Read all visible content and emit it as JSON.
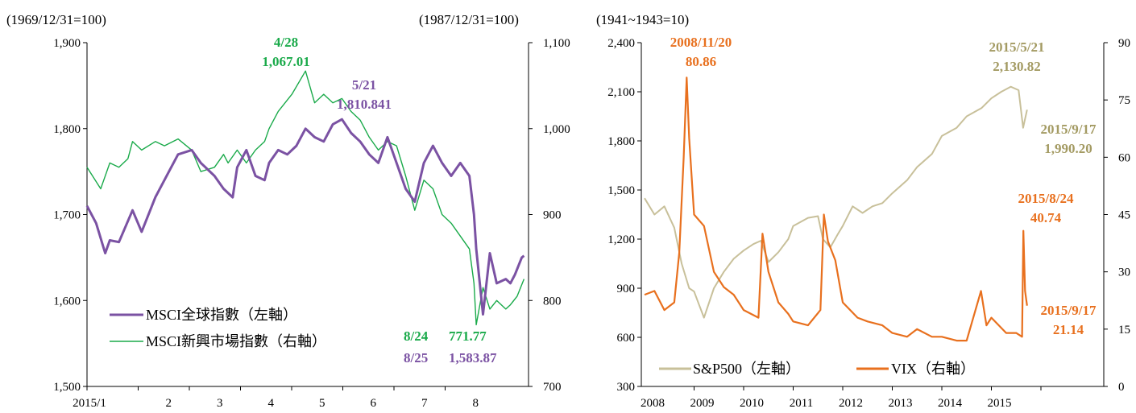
{
  "colors": {
    "msci_world": "#7B52A3",
    "msci_em": "#1AAA4A",
    "sp500": "#C8C09A",
    "vix": "#E8701E",
    "sp500_label": "#A39A62"
  },
  "chart_data": [
    {
      "type": "line",
      "left_unit": "(1969/12/31=100)",
      "right_unit": "(1987/12/31=100)",
      "x_tick_labels": [
        "2015/1",
        "2",
        "3",
        "4",
        "5",
        "6",
        "7",
        "8"
      ],
      "left_ylim": [
        1500,
        1900
      ],
      "left_yticks": [
        "1,500",
        "1,600",
        "1,700",
        "1,800",
        "1,900"
      ],
      "right_ylim": [
        700,
        1100
      ],
      "right_yticks": [
        "700",
        "800",
        "900",
        "1,000",
        "1,100"
      ],
      "series": [
        {
          "name": "MSCI全球指數（左軸）",
          "axis": "left",
          "x": [
            0,
            0.2,
            0.4,
            0.5,
            0.7,
            1.0,
            1.2,
            1.5,
            1.8,
            2.0,
            2.3,
            2.5,
            2.8,
            3.0,
            3.2,
            3.3,
            3.5,
            3.7,
            3.9,
            4.0,
            4.2,
            4.4,
            4.6,
            4.8,
            5.0,
            5.2,
            5.4,
            5.6,
            5.8,
            6.0,
            6.2,
            6.4,
            6.6,
            6.8,
            7.0,
            7.2,
            7.4,
            7.6,
            7.8,
            8.0,
            8.2,
            8.4,
            8.5,
            8.55,
            8.7,
            8.85,
            9.0,
            9.2,
            9.3,
            9.4,
            9.55,
            9.6
          ],
          "values": [
            1710,
            1690,
            1655,
            1670,
            1668,
            1705,
            1680,
            1720,
            1750,
            1770,
            1775,
            1760,
            1745,
            1730,
            1720,
            1755,
            1775,
            1745,
            1740,
            1760,
            1775,
            1770,
            1780,
            1800,
            1790,
            1785,
            1805,
            1810.841,
            1795,
            1785,
            1770,
            1760,
            1790,
            1760,
            1730,
            1715,
            1760,
            1780,
            1760,
            1745,
            1760,
            1745,
            1700,
            1660,
            1583.87,
            1655,
            1620,
            1625,
            1620,
            1630,
            1650,
            1652
          ]
        },
        {
          "name": "MSCI新興市場指數（右軸）",
          "axis": "right",
          "x": [
            0,
            0.3,
            0.5,
            0.7,
            0.9,
            1.0,
            1.2,
            1.5,
            1.7,
            2.0,
            2.3,
            2.5,
            2.8,
            3.0,
            3.1,
            3.3,
            3.5,
            3.7,
            3.9,
            4.0,
            4.2,
            4.5,
            4.8,
            5.0,
            5.2,
            5.4,
            5.6,
            5.8,
            6.0,
            6.2,
            6.4,
            6.6,
            6.8,
            7.0,
            7.2,
            7.4,
            7.6,
            7.8,
            8.0,
            8.2,
            8.4,
            8.5,
            8.55,
            8.7,
            8.85,
            9.0,
            9.2,
            9.3,
            9.45,
            9.6
          ],
          "values": [
            955,
            930,
            960,
            955,
            965,
            985,
            975,
            985,
            980,
            988,
            975,
            950,
            955,
            970,
            960,
            975,
            960,
            975,
            985,
            1000,
            1020,
            1040,
            1067.01,
            1030,
            1040,
            1030,
            1035,
            1020,
            1010,
            990,
            975,
            985,
            980,
            945,
            905,
            940,
            930,
            900,
            890,
            875,
            860,
            820,
            771.77,
            815,
            790,
            800,
            790,
            795,
            805,
            825
          ]
        }
      ],
      "annotations": [
        {
          "date": "4/28",
          "value": "1,067.01",
          "series": "MSCI新興市場指數"
        },
        {
          "date": "5/21",
          "value": "1,810.841",
          "series": "MSCI全球指數"
        },
        {
          "date": "8/24",
          "value": "771.77",
          "series": "MSCI新興市場指數"
        },
        {
          "date": "8/25",
          "value": "1,583.87",
          "series": "MSCI全球指數"
        }
      ]
    },
    {
      "type": "line",
      "left_unit": "(1941~1943=10)",
      "x_tick_labels": [
        "2008",
        "2009",
        "2010",
        "2011",
        "2012",
        "2013",
        "2014",
        "2015"
      ],
      "left_ylim": [
        300,
        2400
      ],
      "left_yticks": [
        "300",
        "600",
        "900",
        "1,200",
        "1,500",
        "1,800",
        "2,100",
        "2,400"
      ],
      "right_ylim": [
        0,
        90
      ],
      "right_yticks": [
        "0",
        "15",
        "30",
        "45",
        "60",
        "75",
        "90"
      ],
      "series": [
        {
          "name": "S&P500（左軸）",
          "axis": "left",
          "x": [
            2008.0,
            2008.2,
            2008.4,
            2008.6,
            2008.75,
            2008.9,
            2009.0,
            2009.1,
            2009.2,
            2009.4,
            2009.6,
            2009.8,
            2010.0,
            2010.2,
            2010.35,
            2010.5,
            2010.7,
            2010.9,
            2011.0,
            2011.3,
            2011.5,
            2011.6,
            2011.75,
            2011.9,
            2012.0,
            2012.2,
            2012.4,
            2012.6,
            2012.8,
            2013.0,
            2013.3,
            2013.5,
            2013.8,
            2014.0,
            2014.3,
            2014.5,
            2014.8,
            2015.0,
            2015.2,
            2015.39,
            2015.55,
            2015.64,
            2015.72
          ],
          "values": [
            1450,
            1350,
            1400,
            1270,
            1050,
            900,
            880,
            800,
            720,
            900,
            1000,
            1080,
            1130,
            1170,
            1190,
            1060,
            1120,
            1200,
            1280,
            1330,
            1340,
            1200,
            1150,
            1230,
            1280,
            1400,
            1360,
            1400,
            1420,
            1480,
            1560,
            1640,
            1720,
            1830,
            1880,
            1950,
            2000,
            2060,
            2100,
            2130.82,
            2110,
            1880,
            1990.2
          ]
        },
        {
          "name": "VIX（右軸）",
          "axis": "right",
          "x": [
            2008.0,
            2008.2,
            2008.4,
            2008.6,
            2008.7,
            2008.79,
            2008.85,
            2008.9,
            2009.0,
            2009.2,
            2009.4,
            2009.6,
            2009.8,
            2010.0,
            2010.3,
            2010.38,
            2010.5,
            2010.7,
            2010.9,
            2011.0,
            2011.3,
            2011.55,
            2011.62,
            2011.7,
            2011.85,
            2012.0,
            2012.3,
            2012.5,
            2012.8,
            2013.0,
            2013.3,
            2013.5,
            2013.8,
            2014.0,
            2014.3,
            2014.5,
            2014.79,
            2014.9,
            2015.0,
            2015.3,
            2015.5,
            2015.62,
            2015.645,
            2015.68,
            2015.72
          ],
          "values": [
            24,
            25,
            20,
            22,
            35,
            60,
            80.86,
            65,
            45,
            42,
            30,
            26,
            24,
            20,
            18,
            40,
            30,
            22,
            19,
            17,
            16,
            20,
            45,
            38,
            33,
            22,
            18,
            17,
            16,
            14,
            13,
            15,
            13,
            13,
            12,
            12,
            25,
            16,
            18,
            14,
            14,
            13,
            40.74,
            25,
            21.14
          ]
        }
      ],
      "annotations": [
        {
          "date": "2008/11/20",
          "value": "80.86",
          "series": "VIX"
        },
        {
          "date": "2015/5/21",
          "value": "2,130.82",
          "series": "S&P500"
        },
        {
          "date": "2015/9/17",
          "value": "1,990.20",
          "series": "S&P500"
        },
        {
          "date": "2015/8/24",
          "value": "40.74",
          "series": "VIX"
        },
        {
          "date": "2015/9/17",
          "value": "21.14",
          "series": "VIX"
        }
      ]
    }
  ]
}
